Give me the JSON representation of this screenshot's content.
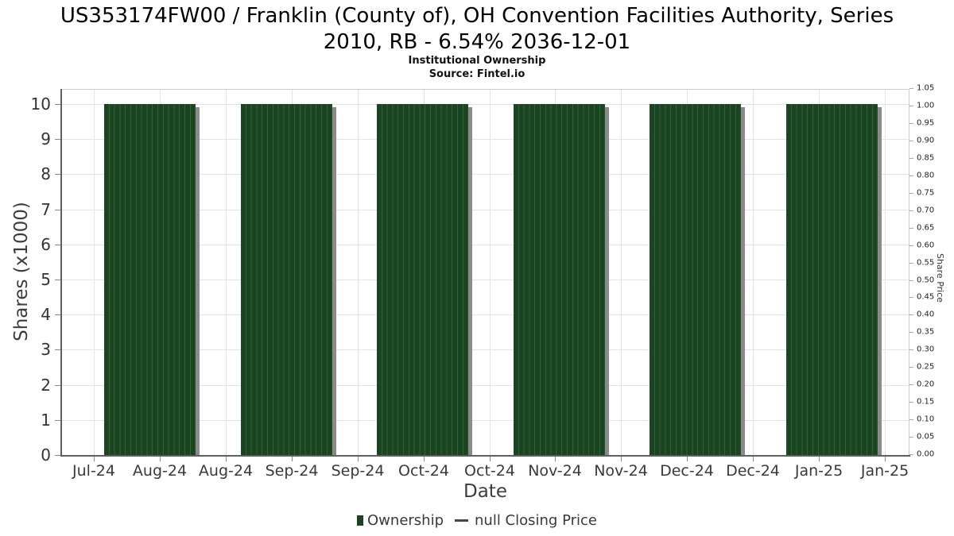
{
  "chart_data": {
    "type": "bar",
    "title": "US353174FW00 / Franklin (County of), OH Convention Facilities Authority, Series 2010, RB - 6.54% 2036-12-01",
    "title_line1": "US353174FW00 / Franklin (County of), OH Convention Facilities Authority, Series",
    "title_line2": "2010, RB - 6.54% 2036-12-01",
    "subtitle": "Institutional Ownership",
    "source": "Source: Fintel.io",
    "xlabel": "Date",
    "ylabel_left": "Shares (x1000)",
    "ylabel_right": "Share Price",
    "x_tick_labels": [
      "Jul-24",
      "Aug-24",
      "Aug-24",
      "Sep-24",
      "Sep-24",
      "Oct-24",
      "Oct-24",
      "Nov-24",
      "Nov-24",
      "Dec-24",
      "Dec-24",
      "Jan-25",
      "Jan-25"
    ],
    "left_axis_ticks": [
      "0",
      "1",
      "2",
      "3",
      "4",
      "5",
      "6",
      "7",
      "8",
      "9",
      "10"
    ],
    "right_axis_ticks": [
      "0.00",
      "0.05",
      "0.10",
      "0.15",
      "0.20",
      "0.25",
      "0.30",
      "0.35",
      "0.40",
      "0.45",
      "0.50",
      "0.55",
      "0.60",
      "0.65",
      "0.70",
      "0.75",
      "0.80",
      "0.85",
      "0.90",
      "0.95",
      "1.00",
      "1.05"
    ],
    "ylim_left": [
      0,
      10.5
    ],
    "ylim_right": [
      0,
      1.05
    ],
    "grid": true,
    "legend_position": "bottom",
    "series": [
      {
        "name": "Ownership",
        "type": "bar",
        "values": [
          10,
          10,
          10,
          10,
          10,
          10
        ]
      },
      {
        "name": "null Closing Price",
        "type": "line",
        "values": []
      }
    ],
    "colors": {
      "bar_fill": "#1a4521",
      "bar_stripe": "#35603c",
      "bar_shadow": "#8a8a8a",
      "grid": "#e3e3e3",
      "axis_text": "#333333"
    }
  }
}
